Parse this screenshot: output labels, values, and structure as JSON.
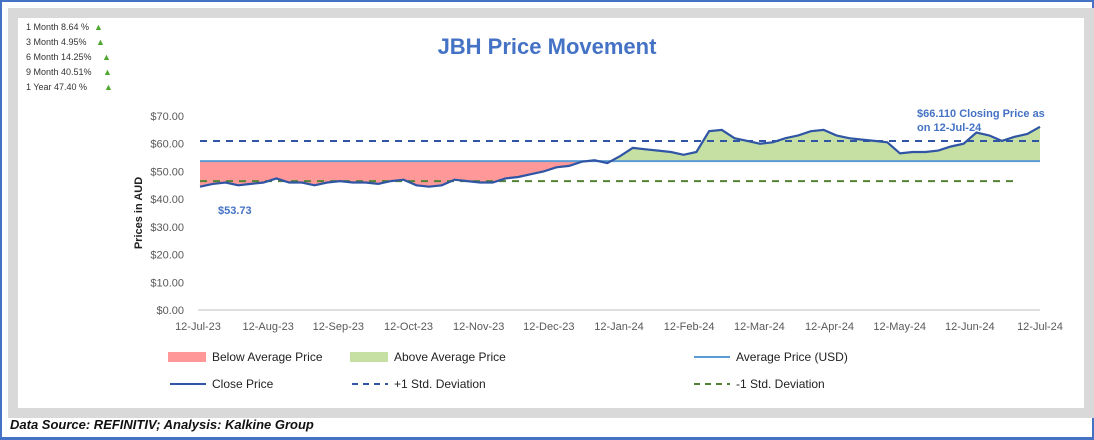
{
  "performance": [
    {
      "label": "1 Month 8.64 %",
      "trend": "up-triangle-icon"
    },
    {
      "label": "3 Month 4.95%",
      "trend": "up-triangle-icon"
    },
    {
      "label": "6 Month 14.25%",
      "trend": "up-triangle-icon"
    },
    {
      "label": "9 Month 40.51%",
      "trend": "up-triangle-icon"
    },
    {
      "label": "1 Year 47.40 %",
      "trend": "up-triangle-icon"
    }
  ],
  "footer": "Data Source: REFINITIV; Analysis: Kalkine Group",
  "chart_data": {
    "type": "area",
    "title": "JBH Price Movement",
    "ylabel": "Prices in AUD",
    "xlabel": "",
    "ylim": [
      0,
      70
    ],
    "yticks": [
      "$0.00",
      "$10.00",
      "$20.00",
      "$30.00",
      "$40.00",
      "$50.00",
      "$60.00",
      "$70.00"
    ],
    "xticks": [
      "12-Jul-23",
      "12-Aug-23",
      "12-Sep-23",
      "12-Oct-23",
      "12-Nov-23",
      "12-Dec-23",
      "12-Jan-24",
      "12-Feb-24",
      "12-Mar-24",
      "12-Apr-24",
      "12-May-24",
      "12-Jun-24",
      "12-Jul-24"
    ],
    "average": 53.73,
    "plus_1_std": 61.0,
    "minus_1_std": 46.5,
    "close_prices": [
      44.5,
      45.5,
      46,
      45,
      45.5,
      46,
      47.5,
      46,
      46,
      45,
      46,
      46.5,
      46,
      46,
      45.5,
      46.5,
      47,
      45,
      44.5,
      45,
      47,
      46.5,
      46,
      46,
      47.5,
      48,
      49,
      50,
      51.5,
      52,
      53.5,
      54,
      53,
      55.5,
      58.5,
      58,
      57.5,
      57,
      56,
      57,
      64.5,
      65,
      62,
      61,
      60,
      60.5,
      62,
      63,
      64.5,
      65,
      63,
      62,
      61.5,
      61,
      60.5,
      56.5,
      57,
      57,
      57.5,
      59,
      60,
      64,
      63,
      61,
      62.5,
      63.5,
      66.11
    ],
    "annotations": {
      "start": "$53.73",
      "end": "$66.110 Closing Price as on 12-Jul-24"
    },
    "legend": [
      {
        "label": "Below Average Price",
        "color": "#ff9999",
        "style": "fill"
      },
      {
        "label": "Above Average Price",
        "color": "#c6e0a4",
        "style": "fill"
      },
      {
        "label": "Average Price (USD)",
        "color": "#5b9bd5",
        "style": "line"
      },
      {
        "label": "Close Price",
        "color": "#2f55a4",
        "style": "line"
      },
      {
        "label": "+1 Std. Deviation",
        "color": "#2f55a4",
        "style": "dash"
      },
      {
        "label": "-1 Std. Deviation",
        "color": "#548235",
        "style": "dash"
      }
    ],
    "legend_position": "bottom"
  }
}
